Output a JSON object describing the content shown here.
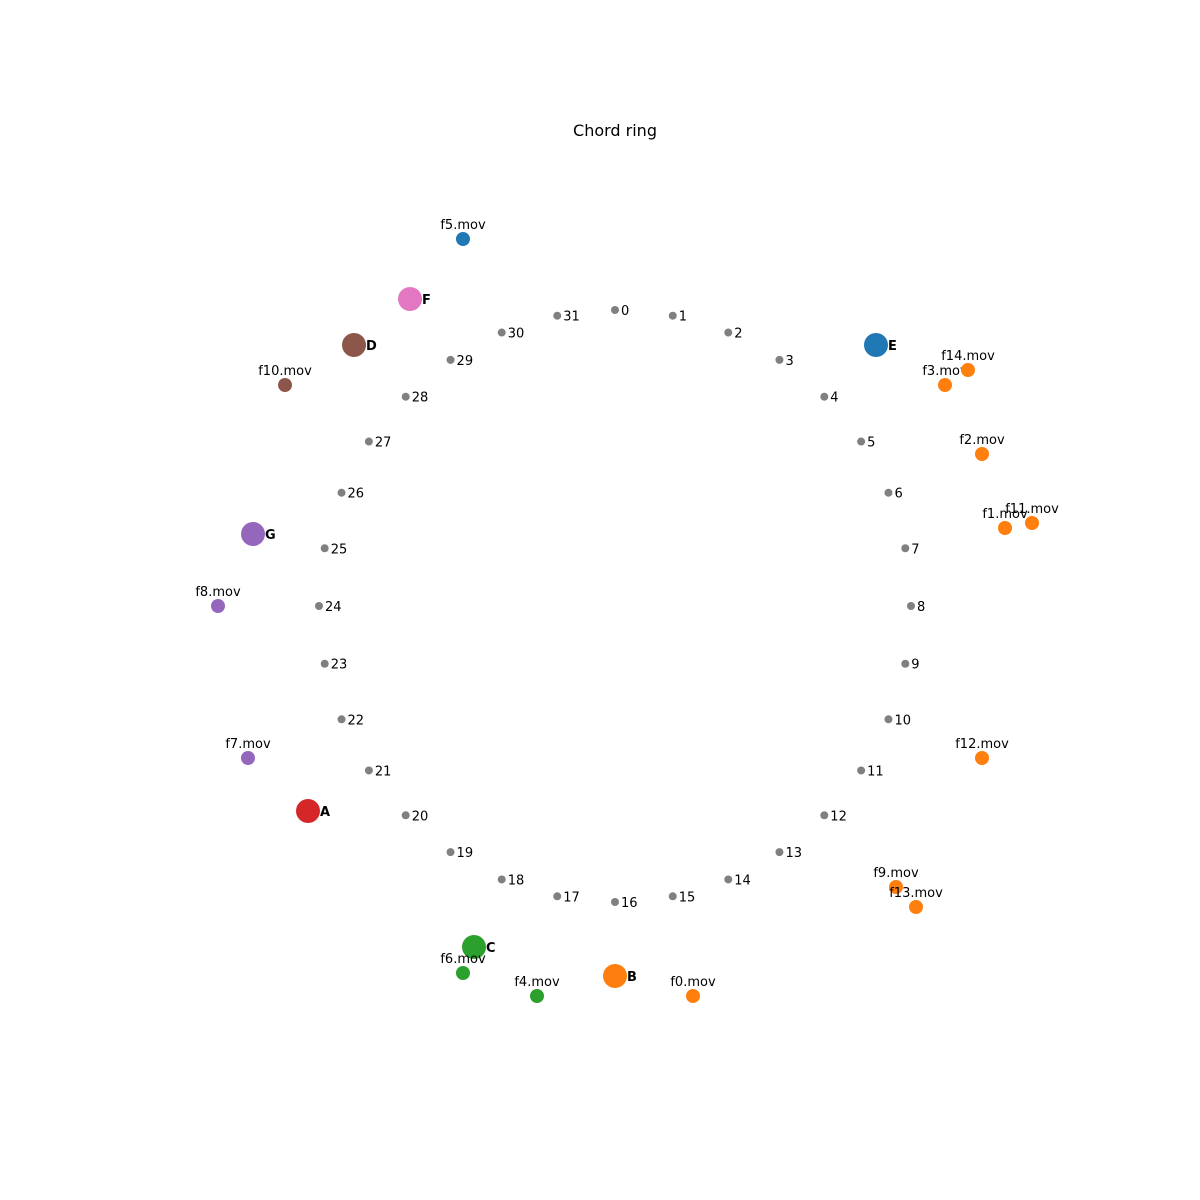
{
  "title": "Chord ring",
  "ring_nodes": [
    "0",
    "1",
    "2",
    "3",
    "4",
    "5",
    "6",
    "7",
    "8",
    "9",
    "10",
    "11",
    "12",
    "13",
    "14",
    "15",
    "16",
    "17",
    "18",
    "19",
    "20",
    "21",
    "22",
    "23",
    "24",
    "25",
    "26",
    "27",
    "28",
    "29",
    "30",
    "31"
  ],
  "ring_node_color": "#808080",
  "servers": [
    {
      "label": "A",
      "color": "#d62728"
    },
    {
      "label": "B",
      "color": "#ff7f0e"
    },
    {
      "label": "C",
      "color": "#2ca02c"
    },
    {
      "label": "D",
      "color": "#8c564b"
    },
    {
      "label": "E",
      "color": "#1f77b4"
    },
    {
      "label": "F",
      "color": "#e377c2"
    },
    {
      "label": "G",
      "color": "#9467bd"
    }
  ],
  "files": [
    {
      "label": "f0.mov",
      "color": "#ff7f0e"
    },
    {
      "label": "f1.mov",
      "color": "#ff7f0e"
    },
    {
      "label": "f2.mov",
      "color": "#ff7f0e"
    },
    {
      "label": "f3.mov",
      "color": "#ff7f0e"
    },
    {
      "label": "f4.mov",
      "color": "#2ca02c"
    },
    {
      "label": "f5.mov",
      "color": "#1f77b4"
    },
    {
      "label": "f6.mov",
      "color": "#2ca02c"
    },
    {
      "label": "f7.mov",
      "color": "#9467bd"
    },
    {
      "label": "f8.mov",
      "color": "#9467bd"
    },
    {
      "label": "f9.mov",
      "color": "#ff7f0e"
    },
    {
      "label": "f10.mov",
      "color": "#8c564b"
    },
    {
      "label": "f11.mov",
      "color": "#ff7f0e"
    },
    {
      "label": "f12.mov",
      "color": "#ff7f0e"
    },
    {
      "label": "f13.mov",
      "color": "#ff7f0e"
    },
    {
      "label": "f14.mov",
      "color": "#ff7f0e"
    }
  ]
}
